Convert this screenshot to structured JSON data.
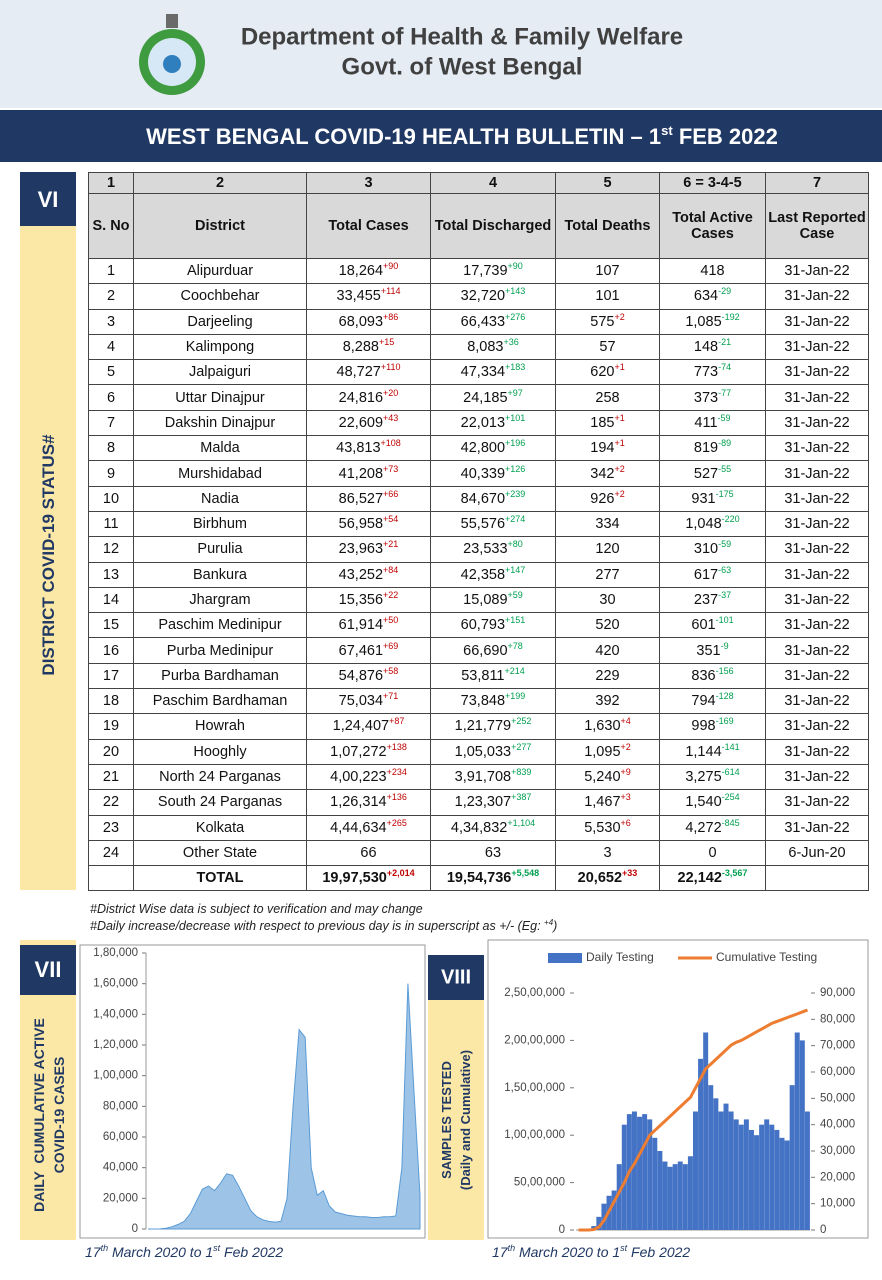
{
  "header": {
    "department": "Department of Health & Family Welfare",
    "government": "Govt. of West Bengal",
    "bulletin": [
      "WEST BENGAL COVID-19 HEALTH BULLETIN – 1",
      "st",
      " FEB 2022"
    ]
  },
  "district_section": {
    "number": "VI",
    "label": "DISTRICT COVID-19 STATUS#"
  },
  "table": {
    "column_numbers": [
      "1",
      "2",
      "3",
      "4",
      "5",
      "6 = 3-4-5",
      "7"
    ],
    "columns": [
      "S. No",
      "District",
      "Total Cases",
      "Total Discharged",
      "Total Deaths",
      "Total Active Cases",
      "Last Reported Case"
    ],
    "rows": [
      [
        "1",
        "Alipurduar",
        {
          "text": "18,264",
          "sup": "+90"
        },
        {
          "text": "17,739",
          "sup": "+90"
        },
        {
          "text": "107"
        },
        {
          "text": "418"
        },
        "31-Jan-22"
      ],
      [
        "2",
        "Coochbehar",
        {
          "text": "33,455",
          "sup": "+114"
        },
        {
          "text": "32,720",
          "sup": "+143"
        },
        {
          "text": "101"
        },
        {
          "text": "634",
          "sup": "-29"
        },
        "31-Jan-22"
      ],
      [
        "3",
        "Darjeeling",
        {
          "text": "68,093",
          "sup": "+86"
        },
        {
          "text": "66,433",
          "sup": "+276"
        },
        {
          "text": "575",
          "sup": "+2"
        },
        {
          "text": "1,085",
          "sup": "-192"
        },
        "31-Jan-22"
      ],
      [
        "4",
        "Kalimpong",
        {
          "text": "8,288",
          "sup": "+15"
        },
        {
          "text": "8,083",
          "sup": "+36"
        },
        {
          "text": "57"
        },
        {
          "text": "148",
          "sup": "-21"
        },
        "31-Jan-22"
      ],
      [
        "5",
        "Jalpaiguri",
        {
          "text": "48,727",
          "sup": "+110"
        },
        {
          "text": "47,334",
          "sup": "+183"
        },
        {
          "text": "620",
          "sup": "+1"
        },
        {
          "text": "773",
          "sup": "-74"
        },
        "31-Jan-22"
      ],
      [
        "6",
        "Uttar Dinajpur",
        {
          "text": "24,816",
          "sup": "+20"
        },
        {
          "text": "24,185",
          "sup": "+97"
        },
        {
          "text": "258"
        },
        {
          "text": "373",
          "sup": "-77"
        },
        "31-Jan-22"
      ],
      [
        "7",
        "Dakshin Dinajpur",
        {
          "text": "22,609",
          "sup": "+43"
        },
        {
          "text": "22,013",
          "sup": "+101"
        },
        {
          "text": "185",
          "sup": "+1"
        },
        {
          "text": "411",
          "sup": "-59"
        },
        "31-Jan-22"
      ],
      [
        "8",
        "Malda",
        {
          "text": "43,813",
          "sup": "+108"
        },
        {
          "text": "42,800",
          "sup": "+196"
        },
        {
          "text": "194",
          "sup": "+1"
        },
        {
          "text": "819",
          "sup": "-89"
        },
        "31-Jan-22"
      ],
      [
        "9",
        "Murshidabad",
        {
          "text": "41,208",
          "sup": "+73"
        },
        {
          "text": "40,339",
          "sup": "+126"
        },
        {
          "text": "342",
          "sup": "+2"
        },
        {
          "text": "527",
          "sup": "-55"
        },
        "31-Jan-22"
      ],
      [
        "10",
        "Nadia",
        {
          "text": "86,527",
          "sup": "+66"
        },
        {
          "text": "84,670",
          "sup": "+239"
        },
        {
          "text": "926",
          "sup": "+2"
        },
        {
          "text": "931",
          "sup": "-175"
        },
        "31-Jan-22"
      ],
      [
        "11",
        "Birbhum",
        {
          "text": "56,958",
          "sup": "+54"
        },
        {
          "text": "55,576",
          "sup": "+274"
        },
        {
          "text": "334"
        },
        {
          "text": "1,048",
          "sup": "-220"
        },
        "31-Jan-22"
      ],
      [
        "12",
        "Purulia",
        {
          "text": "23,963",
          "sup": "+21"
        },
        {
          "text": "23,533",
          "sup": "+80"
        },
        {
          "text": "120"
        },
        {
          "text": "310",
          "sup": "-59"
        },
        "31-Jan-22"
      ],
      [
        "13",
        "Bankura",
        {
          "text": "43,252",
          "sup": "+84"
        },
        {
          "text": "42,358",
          "sup": "+147"
        },
        {
          "text": "277"
        },
        {
          "text": "617",
          "sup": "-63"
        },
        "31-Jan-22"
      ],
      [
        "14",
        "Jhargram",
        {
          "text": "15,356",
          "sup": "+22"
        },
        {
          "text": "15,089",
          "sup": "+59"
        },
        {
          "text": "30"
        },
        {
          "text": "237",
          "sup": "-37"
        },
        "31-Jan-22"
      ],
      [
        "15",
        "Paschim Medinipur",
        {
          "text": "61,914",
          "sup": "+50"
        },
        {
          "text": "60,793",
          "sup": "+151"
        },
        {
          "text": "520"
        },
        {
          "text": "601",
          "sup": "-101"
        },
        "31-Jan-22"
      ],
      [
        "16",
        "Purba Medinipur",
        {
          "text": "67,461",
          "sup": "+69"
        },
        {
          "text": "66,690",
          "sup": "+78"
        },
        {
          "text": "420"
        },
        {
          "text": "351",
          "sup": "-9"
        },
        "31-Jan-22"
      ],
      [
        "17",
        "Purba Bardhaman",
        {
          "text": "54,876",
          "sup": "+58"
        },
        {
          "text": "53,811",
          "sup": "+214"
        },
        {
          "text": "229"
        },
        {
          "text": "836",
          "sup": "-156"
        },
        "31-Jan-22"
      ],
      [
        "18",
        "Paschim Bardhaman",
        {
          "text": "75,034",
          "sup": "+71"
        },
        {
          "text": "73,848",
          "sup": "+199"
        },
        {
          "text": "392"
        },
        {
          "text": "794",
          "sup": "-128"
        },
        "31-Jan-22"
      ],
      [
        "19",
        "Howrah",
        {
          "text": "1,24,407",
          "sup": "+87"
        },
        {
          "text": "1,21,779",
          "sup": "+252"
        },
        {
          "text": "1,630",
          "sup": "+4"
        },
        {
          "text": "998",
          "sup": "-169"
        },
        "31-Jan-22"
      ],
      [
        "20",
        "Hooghly",
        {
          "text": "1,07,272",
          "sup": "+138"
        },
        {
          "text": "1,05,033",
          "sup": "+277"
        },
        {
          "text": "1,095",
          "sup": "+2"
        },
        {
          "text": "1,144",
          "sup": "-141"
        },
        "31-Jan-22"
      ],
      [
        "21",
        "North 24 Parganas",
        {
          "text": "4,00,223",
          "sup": "+234"
        },
        {
          "text": "3,91,708",
          "sup": "+839"
        },
        {
          "text": "5,240",
          "sup": "+9"
        },
        {
          "text": "3,275",
          "sup": "-614"
        },
        "31-Jan-22"
      ],
      [
        "22",
        "South 24 Parganas",
        {
          "text": "1,26,314",
          "sup": "+136"
        },
        {
          "text": "1,23,307",
          "sup": "+387"
        },
        {
          "text": "1,467",
          "sup": "+3"
        },
        {
          "text": "1,540",
          "sup": "-254"
        },
        "31-Jan-22"
      ],
      [
        "23",
        "Kolkata",
        {
          "text": "4,44,634",
          "sup": "+265"
        },
        {
          "text": "4,34,832",
          "sup": "+1,104"
        },
        {
          "text": "5,530",
          "sup": "+6"
        },
        {
          "text": "4,272",
          "sup": "-845"
        },
        "31-Jan-22"
      ],
      [
        "24",
        "Other State",
        {
          "text": "66"
        },
        {
          "text": "63"
        },
        {
          "text": "3"
        },
        {
          "text": "0"
        },
        "6-Jun-20"
      ]
    ],
    "total": {
      "label": "TOTAL",
      "cells": [
        {
          "text": "19,97,530",
          "sup": "+2,014"
        },
        {
          "text": "19,54,736",
          "sup": "+5,548"
        },
        {
          "text": "20,652",
          "sup": "+33"
        },
        {
          "text": "22,142",
          "sup": "-3,567"
        }
      ]
    }
  },
  "notes": [
    "#District Wise data is subject to verification and may change",
    "#Daily increase/decrease with respect to previous day is in superscript as +/- (Eg: ",
    "+4",
    ")"
  ],
  "chart_data": [
    {
      "type": "area",
      "section": "VII",
      "ylabel": [
        "DAILY  CUMULATIVE ACTIVE",
        "COVID-19 CASES"
      ],
      "caption": [
        "17",
        "th",
        " March 2020 to 1",
        "st",
        " Feb 2022"
      ],
      "categories": [
        null,
        null,
        null,
        null,
        null,
        null,
        null,
        null,
        null,
        null,
        null,
        null,
        null,
        null,
        null,
        null,
        null,
        null,
        null,
        null,
        null,
        null,
        null,
        null,
        null,
        null,
        null,
        null,
        null,
        null,
        null,
        null,
        null,
        null,
        null,
        null,
        null,
        null,
        null,
        null,
        null,
        null,
        null,
        null,
        null,
        null
      ],
      "values": [
        0,
        0,
        100,
        500,
        1500,
        3000,
        5000,
        10000,
        18000,
        26000,
        28000,
        25000,
        30000,
        36000,
        35000,
        28000,
        20000,
        12000,
        8000,
        6000,
        5000,
        4500,
        5000,
        20000,
        80000,
        130000,
        125000,
        40000,
        22000,
        25000,
        15000,
        11000,
        10000,
        9000,
        8500,
        8000,
        8000,
        7500,
        7500,
        8000,
        8000,
        8500,
        40000,
        160000,
        90000,
        22000
      ],
      "color": "#9dc3e6",
      "stroke": "#5b9bd5",
      "ylim": [
        0,
        180000
      ],
      "yticks": [
        0,
        {
          "value": 20000,
          "label": "20,000"
        },
        {
          "value": 40000,
          "label": "40,000"
        },
        {
          "value": 60000,
          "label": "60,000"
        },
        {
          "value": 80000,
          "label": "80,000"
        },
        {
          "value": 100000,
          "label": "1,00,000"
        },
        {
          "value": 120000,
          "label": "1,20,000"
        },
        {
          "value": 140000,
          "label": "1,40,000"
        },
        {
          "value": 160000,
          "label": "1,60,000"
        },
        {
          "value": 180000,
          "label": "1,80,000"
        }
      ]
    },
    {
      "type": "combo",
      "section": "VIII",
      "ylabel": [
        "SAMPLES TESTED",
        "(Daily and Cumulative)"
      ],
      "caption": [
        "17",
        "th",
        " March 2020 to 1",
        "st",
        " Feb 2022"
      ],
      "categories": [
        null,
        null,
        null,
        null,
        null,
        null,
        null,
        null,
        null,
        null,
        null,
        null,
        null,
        null,
        null,
        null,
        null,
        null,
        null,
        null,
        null,
        null,
        null,
        null,
        null,
        null,
        null,
        null,
        null,
        null,
        null,
        null,
        null,
        null,
        null,
        null,
        null,
        null,
        null,
        null,
        null,
        null,
        null,
        null,
        null,
        null
      ],
      "series": [
        {
          "name": "Daily Testing",
          "kind": "bar",
          "axis": "y2",
          "color": "#4472c4",
          "values": [
            0,
            0,
            200,
            1500,
            5000,
            10000,
            13000,
            15000,
            25000,
            40000,
            44000,
            45000,
            43000,
            44000,
            42000,
            35000,
            30000,
            26000,
            24000,
            25000,
            26000,
            25000,
            28000,
            45000,
            65000,
            75000,
            55000,
            50000,
            45000,
            48000,
            45000,
            42000,
            40000,
            42000,
            38000,
            36000,
            40000,
            42000,
            40000,
            38000,
            35000,
            34000,
            55000,
            75000,
            72000,
            45000
          ]
        },
        {
          "name": "Cumulative Testing",
          "kind": "line",
          "color": "#ed7d31",
          "values": [
            0,
            0,
            0,
            50000,
            300000,
            1000000,
            2000000,
            3000000,
            4000000,
            5000000,
            6200000,
            7000000,
            8000000,
            9000000,
            10000000,
            10500000,
            11000000,
            11500000,
            12000000,
            12500000,
            13000000,
            13500000,
            14000000,
            15000000,
            16000000,
            17000000,
            17500000,
            18000000,
            18500000,
            19000000,
            19500000,
            19800000,
            20000000,
            20300000,
            20600000,
            20900000,
            21200000,
            21500000,
            21800000,
            22000000,
            22200000,
            22400000,
            22600000,
            22800000,
            23000000,
            23200000
          ]
        }
      ],
      "ylim": [
        0,
        25000000
      ],
      "yticks": [
        0,
        {
          "value": 5000000,
          "label": "50,00,000"
        },
        {
          "value": 10000000,
          "label": "1,00,00,000"
        },
        {
          "value": 15000000,
          "label": "1,50,00,000"
        },
        {
          "value": 20000000,
          "label": "2,00,00,000"
        },
        {
          "value": 25000000,
          "label": "2,50,00,000"
        }
      ],
      "y2lim": [
        0,
        90000
      ],
      "y2ticks": [
        0,
        {
          "value": 10000,
          "label": "10,000"
        },
        {
          "value": 20000,
          "label": "20,000"
        },
        {
          "value": 30000,
          "label": "30,000"
        },
        {
          "value": 40000,
          "label": "40,000"
        },
        {
          "value": 50000,
          "label": "50,000"
        },
        {
          "value": 60000,
          "label": "60,000"
        },
        {
          "value": 70000,
          "label": "70,000"
        },
        {
          "value": 80000,
          "label": "80,000"
        },
        {
          "value": 90000,
          "label": "90,000"
        }
      ]
    }
  ]
}
